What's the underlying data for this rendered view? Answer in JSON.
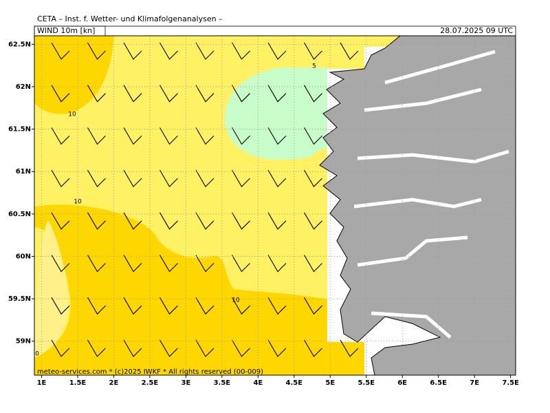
{
  "header": {
    "title": "CETA – Inst. f. Wetter- und Klimafolgenanalysen –",
    "field": "WIND 10m [kn]",
    "valid_time": "28.07.2025 09 UTC"
  },
  "map": {
    "xlim": [
      0.9,
      7.57
    ],
    "ylim": [
      58.6,
      62.6
    ],
    "xticks": [
      {
        "value": 1,
        "label": "1E"
      },
      {
        "value": 1.5,
        "label": "1.5E"
      },
      {
        "value": 2,
        "label": "2E"
      },
      {
        "value": 2.5,
        "label": "2.5E"
      },
      {
        "value": 3,
        "label": "3E"
      },
      {
        "value": 3.5,
        "label": "3.5E"
      },
      {
        "value": 4,
        "label": "4E"
      },
      {
        "value": 4.5,
        "label": "4.5E"
      },
      {
        "value": 5,
        "label": "5E"
      },
      {
        "value": 5.5,
        "label": "5.5E"
      },
      {
        "value": 6,
        "label": "6E"
      },
      {
        "value": 6.5,
        "label": "6.5E"
      },
      {
        "value": 7,
        "label": "7E"
      },
      {
        "value": 7.5,
        "label": "7.5E"
      }
    ],
    "yticks": [
      {
        "value": 59,
        "label": "59N"
      },
      {
        "value": 59.5,
        "label": "59.5N"
      },
      {
        "value": 60,
        "label": "60N"
      },
      {
        "value": 60.5,
        "label": "60.5N"
      },
      {
        "value": 61,
        "label": "61N"
      },
      {
        "value": 61.5,
        "label": "61.5N"
      },
      {
        "value": 62,
        "label": "62N"
      },
      {
        "value": 62.5,
        "label": "62.5N"
      }
    ],
    "contour_labels": [
      "10",
      "10",
      "10",
      "5",
      "0"
    ],
    "copyright": "meteo-services.com * (c)2025 IWKF * All rights reserved (00-009)"
  }
}
